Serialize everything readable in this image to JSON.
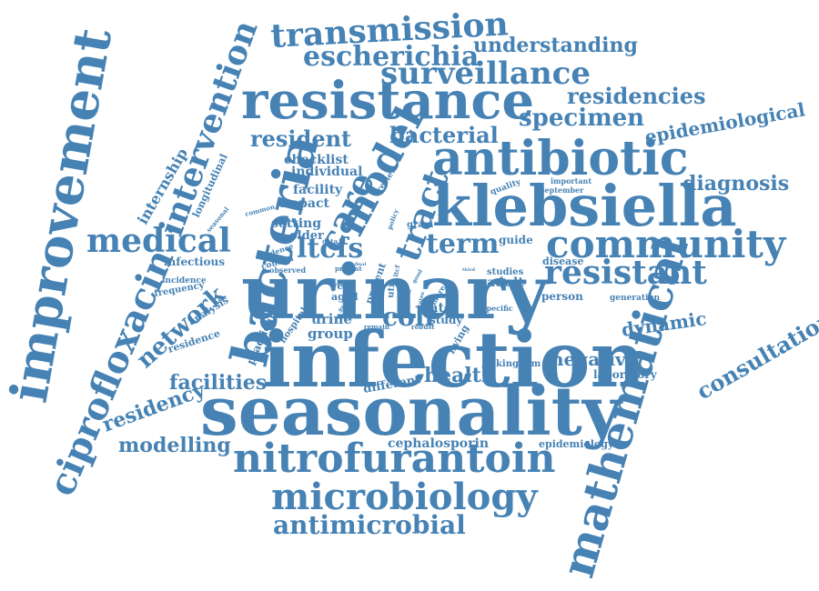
{
  "cloud": {
    "color": "#4682b4",
    "words": [
      "seasonality",
      "infection",
      "urinary",
      "klebsiella",
      "antibiotic",
      "resistance",
      "bacteria",
      "improvement",
      "mathematical",
      "ciprofloxacin",
      "nitrofurantoin",
      "community",
      "microbiology",
      "surveillance",
      "transmission",
      "escherichia",
      "medical",
      "intervention",
      "model",
      "tract",
      "resistant",
      "antimicrobial",
      "understanding",
      "residencies",
      "specimen",
      "epidemiological",
      "diagnosis",
      "consultation",
      "network",
      "residency",
      "modelling",
      "bacterial",
      "resident",
      "care",
      "term",
      "ltcfs",
      "coli",
      "health",
      "negative",
      "dynamic",
      "facilities",
      "internship",
      "longitudinal",
      "checklist",
      "individual",
      "facility",
      "impact",
      "setting",
      "older",
      "infectious",
      "incidence",
      "frequency",
      "analysis",
      "residence",
      "practical",
      "hospital",
      "group",
      "urine",
      "rate",
      "study",
      "adult",
      "studies",
      "person",
      "generation",
      "laboratory",
      "kingdom",
      "cephalosporin",
      "epidemiology",
      "different",
      "living",
      "guide",
      "disease",
      "quality",
      "important",
      "september",
      "gram",
      "review",
      "common",
      "seasonal",
      "evidence",
      "control",
      "observed",
      "present",
      "global",
      "year",
      "aged",
      "prevent",
      "data",
      "policy",
      "remain",
      "robust",
      "specific",
      "more",
      "uti",
      "good",
      "third",
      "ltcf",
      "final",
      "rates",
      "focus"
    ]
  }
}
